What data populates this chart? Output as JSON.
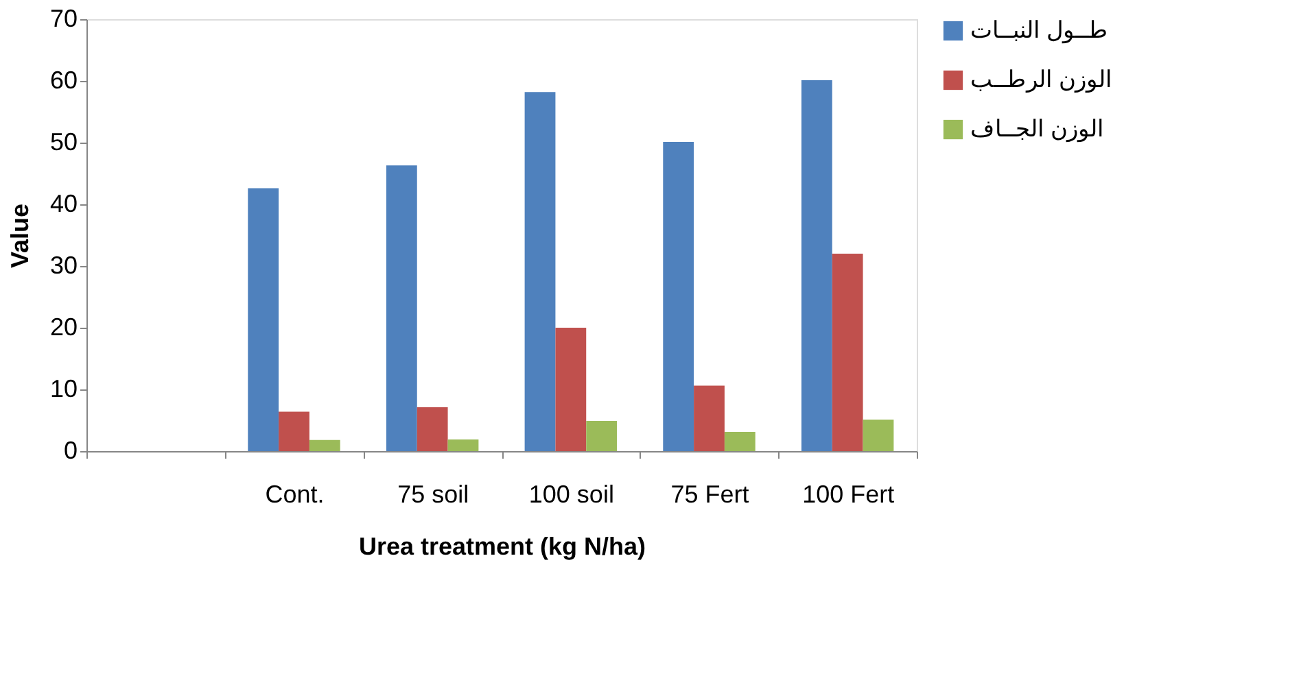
{
  "chart_data": {
    "type": "bar",
    "xlabel": "Urea treatment (kg N/ha)",
    "ylabel": "Value",
    "categories": [
      null,
      "Cont.",
      "75 soil",
      "100 soil",
      "75 Fert",
      "100 Fert"
    ],
    "series": [
      {
        "name": "طــول النبــات",
        "color": "#4f81bd",
        "values": [
          null,
          42.6,
          46.3,
          58.2,
          50.1,
          60.1
        ]
      },
      {
        "name": "الوزن الرطــب",
        "color": "#c0504d",
        "values": [
          null,
          6.4,
          7.1,
          20.0,
          10.6,
          32.0
        ]
      },
      {
        "name": "الوزن الجــاف",
        "color": "#9bbb59",
        "values": [
          null,
          1.8,
          1.9,
          4.9,
          3.1,
          5.1
        ]
      }
    ],
    "ylim": [
      0,
      70
    ],
    "yticks": [
      0,
      10,
      20,
      30,
      40,
      50,
      60,
      70
    ],
    "grid": false,
    "legend": "right"
  }
}
